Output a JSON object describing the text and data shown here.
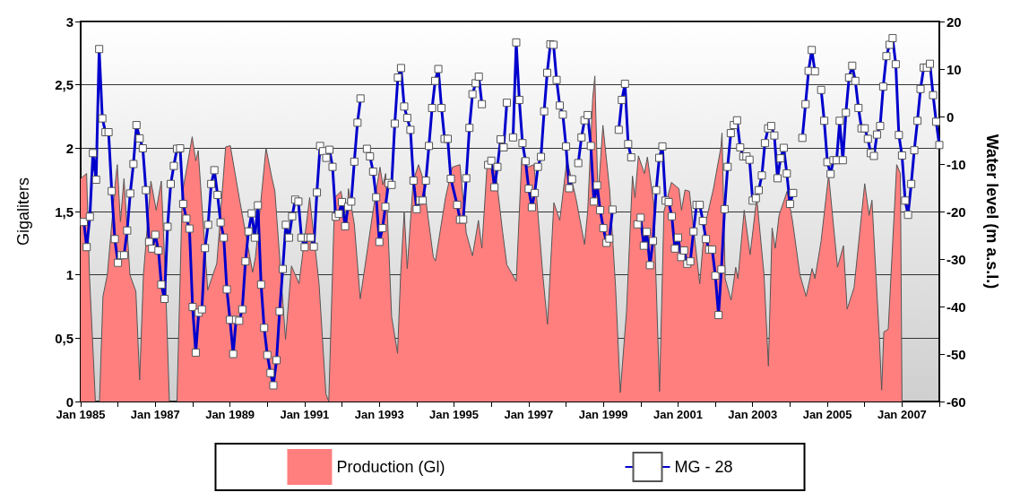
{
  "chart_data": {
    "type": "line",
    "ylabel": "Gigaliters",
    "y2label": "Water level (m a.s.l.)",
    "xlim": [
      "1985-01",
      "2008-01"
    ],
    "xticks": [
      {
        "value": "1985-01",
        "label": "Jan 1985"
      },
      {
        "value": "1986-01",
        "label": null
      },
      {
        "value": "1987-01",
        "label": "Jan 1987"
      },
      {
        "value": "1988-01",
        "label": null
      },
      {
        "value": "1989-01",
        "label": "Jan 1989"
      },
      {
        "value": "1990-01",
        "label": null
      },
      {
        "value": "1991-01",
        "label": "Jan 1991"
      },
      {
        "value": "1992-01",
        "label": null
      },
      {
        "value": "1993-01",
        "label": "Jan 1993"
      },
      {
        "value": "1994-01",
        "label": null
      },
      {
        "value": "1995-01",
        "label": "Jan 1995"
      },
      {
        "value": "1996-01",
        "label": null
      },
      {
        "value": "1997-01",
        "label": "Jan 1997"
      },
      {
        "value": "1998-01",
        "label": null
      },
      {
        "value": "1999-01",
        "label": "Jan 1999"
      },
      {
        "value": "2000-01",
        "label": null
      },
      {
        "value": "2001-01",
        "label": "Jan 2001"
      },
      {
        "value": "2002-01",
        "label": null
      },
      {
        "value": "2003-01",
        "label": "Jan 2003"
      },
      {
        "value": "2004-01",
        "label": null
      },
      {
        "value": "2005-01",
        "label": "Jan 2005"
      },
      {
        "value": "2006-01",
        "label": null
      },
      {
        "value": "2007-01",
        "label": "Jan 2007"
      },
      {
        "value": "2008-01",
        "label": null
      }
    ],
    "ylim": [
      0,
      3
    ],
    "yticks": [
      0,
      {
        "value": 0.5,
        "label": "0,5"
      },
      1,
      {
        "value": 1.5,
        "label": "1,5"
      },
      2,
      {
        "value": 2.5,
        "label": "2,5"
      },
      3
    ],
    "y2lim": [
      -60,
      20
    ],
    "y2ticks": [
      -60,
      -50,
      -40,
      -30,
      -20,
      -10,
      0,
      10,
      20
    ],
    "grid": "y",
    "legend": "bottom",
    "series": [
      {
        "name": "Production (Gl)",
        "type": "area",
        "color": "#ff7f7f",
        "x": [
          "1985-01-01",
          "1985-02-28",
          "1985-03-28",
          "1985-05-25",
          "1985-07-04",
          "1985-08-07",
          "1985-09-19",
          "1985-12-04",
          "1985-12-25",
          "1986-01-25",
          "1986-03-01",
          "1986-04-28",
          "1986-06-25",
          "1986-08-01",
          "1986-09-07",
          "1986-11-19",
          "1987-01-10",
          "1987-03-01",
          "1987-04-13",
          "1987-05-19",
          "1987-08-01",
          "1987-09-22",
          "1987-12-28",
          "1988-02-01",
          "1988-02-25",
          "1988-05-28",
          "1988-08-25",
          "1988-11-19",
          "1989-01-04",
          "1989-04-01",
          "1989-08-10",
          "1989-09-07",
          "1989-12-19",
          "1990-02-16",
          "1990-03-16",
          "1990-06-28",
          "1990-08-25",
          "1990-11-07",
          "1991-02-19",
          "1991-05-22",
          "1991-07-28",
          "1991-08-25",
          "1991-10-22",
          "1991-12-22",
          "1992-02-19",
          "1992-03-04",
          "1992-05-01",
          "1992-06-28",
          "1992-10-25",
          "1993-01-07",
          "1993-02-04",
          "1993-03-04",
          "1993-05-01",
          "1993-06-28",
          "1993-07-28",
          "1993-09-01",
          "1993-10-01",
          "1993-11-28",
          "1994-01-19",
          "1994-03-04",
          "1994-06-13",
          "1994-07-04",
          "1994-10-10",
          "1994-12-16",
          "1995-02-28",
          "1995-05-01",
          "1995-07-01",
          "1995-08-28",
          "1995-10-01",
          "1995-11-22",
          "1996-02-07",
          "1996-04-19",
          "1996-06-01",
          "1996-09-01",
          "1996-10-25",
          "1996-12-22",
          "1997-02-22",
          "1997-05-19",
          "1997-07-04",
          "1997-09-04",
          "1997-11-01",
          "1998-01-10",
          "1998-04-07",
          "1998-07-01",
          "1998-08-01",
          "1998-09-19",
          "1998-10-10",
          "1998-11-10",
          "1998-12-28",
          "1999-03-04",
          "1999-05-01",
          "1999-06-16",
          "1999-08-16",
          "1999-10-13",
          "1999-11-07",
          "1999-12-10",
          "2000-02-07",
          "2000-03-07",
          "2000-05-07",
          "2000-07-04",
          "2000-08-16",
          "2000-10-28",
          "2001-01-10",
          "2001-02-04",
          "2001-03-10",
          "2001-04-22",
          "2001-08-01",
          "2001-09-16",
          "2001-12-13",
          "2002-02-25",
          "2002-03-07",
          "2002-04-07",
          "2002-06-04",
          "2002-07-19",
          "2002-08-10",
          "2002-10-10",
          "2002-12-07",
          "2003-02-10",
          "2003-04-22",
          "2003-06-04",
          "2003-07-10",
          "2003-08-10",
          "2003-09-16",
          "2003-12-04",
          "2004-01-25",
          "2004-04-07",
          "2004-06-07",
          "2004-08-04",
          "2004-09-01",
          "2004-11-01",
          "2005-01-13",
          "2005-04-10",
          "2005-06-07",
          "2005-07-13",
          "2005-09-19",
          "2006-01-01",
          "2006-02-13",
          "2006-03-13",
          "2006-05-25",
          "2006-06-16",
          "2006-07-07",
          "2006-08-19",
          "2006-11-10",
          "2006-12-16",
          "2007-01-01"
        ],
        "values": [
          1.76,
          1.8,
          1.0,
          0,
          0,
          0.83,
          1.0,
          1.71,
          1.87,
          1.42,
          1.76,
          1.0,
          0.87,
          0.17,
          1.0,
          1.74,
          1.51,
          1.74,
          0.9,
          0,
          0,
          1.64,
          2.09,
          1.9,
          1.98,
          0.88,
          1.09,
          2.01,
          2.02,
          1.61,
          1.02,
          1.14,
          2.0,
          1.76,
          1.66,
          0.49,
          1.07,
          0.93,
          1.61,
          0.93,
          0.06,
          0,
          1.61,
          1.66,
          1.4,
          1.68,
          1.4,
          0.81,
          1.47,
          1.85,
          1.71,
          1.8,
          0.67,
          0.38,
          1.0,
          1.5,
          1.05,
          1.74,
          1.87,
          1.76,
          1.14,
          1.11,
          1.61,
          1.85,
          1.87,
          1.33,
          1.15,
          1.43,
          1.21,
          1.88,
          1.85,
          1.35,
          1.08,
          0.95,
          1.92,
          1.85,
          1.87,
          1.0,
          0.61,
          1.57,
          1.43,
          1.91,
          1.61,
          1.24,
          1.5,
          2.39,
          2.57,
          1.61,
          2.18,
          1.67,
          0.9,
          0.07,
          0.71,
          1.78,
          1.61,
          1.94,
          1.8,
          1.93,
          1.57,
          0.08,
          1.5,
          1.73,
          1.68,
          1.51,
          1.67,
          1.66,
          0.93,
          1.37,
          1.68,
          2.01,
          2.12,
          0.97,
          0.8,
          1.06,
          0.97,
          1.51,
          1.16,
          1.61,
          1.0,
          0.28,
          1.37,
          1.21,
          1.47,
          1.66,
          1.43,
          1.0,
          0.83,
          1.05,
          0.97,
          1.27,
          1.79,
          1.06,
          1.23,
          0.73,
          0.9,
          1.72,
          1.47,
          1.59,
          0.49,
          0.09,
          0.55,
          0.57,
          1.87,
          1.8,
          0
        ]
      },
      {
        "name": "MG - 28",
        "axis": "y2",
        "marker": "square",
        "color": "#0000cc",
        "x": [
          "1985-02",
          "1985-03",
          "1985-04",
          "1985-05",
          "1985-06",
          "1985-07",
          "1985-08",
          "1985-09",
          "1985-10",
          "1985-11",
          "1985-12",
          "1986-01",
          "1986-02",
          "1986-03",
          "1986-04",
          "1986-05",
          "1986-06",
          "1986-07",
          "1986-08",
          "1986-09",
          "1986-10",
          "1986-11",
          "1986-12",
          "1987-01",
          "1987-02",
          "1987-03",
          "1987-04",
          "1987-05",
          "1987-06",
          "1987-07",
          "1987-08",
          "1987-09",
          "1987-10",
          "1987-11",
          "1987-12",
          "1988-01",
          "1988-02",
          "1988-03",
          "1988-04",
          "1988-05",
          "1988-06",
          "1988-07",
          "1988-08",
          "1988-09",
          "1988-10",
          "1988-11",
          "1988-12",
          "1989-01",
          "1989-02",
          "1989-03",
          "1989-04",
          "1989-05",
          "1989-06",
          "1989-07",
          "1989-08",
          "1989-09",
          "1989-10",
          "1989-11",
          "1989-12",
          "1990-01",
          "1990-02",
          "1990-03",
          "1990-04",
          "1990-05",
          "1990-06",
          "1990-07",
          "1990-08",
          "1990-09",
          "1990-10",
          "1990-11",
          "1990-12",
          "1991-01",
          "1991-02",
          "1991-03",
          "1991-04",
          "1991-05",
          "1991-06",
          "1991-07",
          "1991-08",
          "1991-09",
          "1991-10",
          "1991-11",
          "1991-12",
          "1992-01",
          "1992-02",
          "1992-03",
          "1992-04",
          "1992-05",
          "1992-06",
          "1992-07",
          "1992-08",
          "1992-09",
          "1992-10",
          "1992-11",
          "1992-12",
          "1993-01",
          "1993-02",
          "1993-03",
          "1993-04",
          "1993-05",
          "1993-06",
          "1993-07",
          "1993-08",
          "1993-09",
          "1993-10",
          "1993-11",
          "1993-12",
          "1994-01",
          "1994-02",
          "1994-03",
          "1994-04",
          "1994-05",
          "1994-06",
          "1994-07",
          "1994-08",
          "1994-09",
          "1994-10",
          "1994-11",
          "1994-12",
          "1995-02",
          "1995-03",
          "1995-04",
          "1995-05",
          "1995-06",
          "1995-07",
          "1995-08",
          "1995-09",
          "1995-10",
          "1995-11",
          "1995-12",
          "1996-01",
          "1996-02",
          "1996-03",
          "1996-04",
          "1996-05",
          "1996-06",
          "1996-07",
          "1996-08",
          "1996-09",
          "1996-10",
          "1996-11",
          "1996-12",
          "1997-01",
          "1997-02",
          "1997-03",
          "1997-04",
          "1997-05",
          "1997-06",
          "1997-07",
          "1997-08",
          "1997-09",
          "1997-10",
          "1997-11",
          "1997-12",
          "1998-01",
          "1998-02",
          "1998-03",
          "1998-04",
          "1998-05",
          "1998-06",
          "1998-07",
          "1998-08",
          "1998-09",
          "1998-10",
          "1998-11",
          "1998-12",
          "1999-01",
          "1999-02",
          "1999-03",
          "1999-04",
          "1999-05",
          "1999-06",
          "1999-07",
          "1999-08",
          "1999-09",
          "1999-10",
          "1999-11",
          "1999-12",
          "2000-01",
          "2000-02",
          "2000-03",
          "2000-04",
          "2000-05",
          "2000-06",
          "2000-07",
          "2000-08",
          "2000-09",
          "2000-10",
          "2000-11",
          "2000-12",
          "2001-01",
          "2001-02",
          "2001-03",
          "2001-04",
          "2001-05",
          "2001-06",
          "2001-07",
          "2001-08",
          "2001-09",
          "2001-10",
          "2001-11",
          "2001-12",
          "2002-01",
          "2002-02",
          "2002-03",
          "2002-04",
          "2002-05",
          "2002-06",
          "2002-07",
          "2002-08",
          "2002-09",
          "2002-10",
          "2002-11",
          "2002-12",
          "2003-01",
          "2003-02",
          "2003-03",
          "2003-04",
          "2003-05",
          "2003-06",
          "2003-07",
          "2003-08",
          "2003-09",
          "2003-10",
          "2003-11",
          "2003-12",
          "2004-01",
          "2004-02",
          "2004-04",
          "2004-05",
          "2004-06",
          "2004-07",
          "2004-08",
          "2004-09",
          "2004-10",
          "2004-11",
          "2004-12",
          "2005-01",
          "2005-02",
          "2005-03",
          "2005-04",
          "2005-05",
          "2005-06",
          "2005-07",
          "2005-08",
          "2005-09",
          "2005-10",
          "2005-11",
          "2005-12",
          "2006-01",
          "2006-02",
          "2006-03",
          "2006-04",
          "2006-05",
          "2006-06",
          "2006-07",
          "2006-08",
          "2006-09",
          "2006-10",
          "2006-11",
          "2006-12",
          "2007-01",
          "2007-02",
          "2007-03",
          "2007-04",
          "2007-05",
          "2007-06",
          "2007-07",
          "2007-08",
          "2007-09",
          "2007-10",
          "2007-11",
          "2007-12",
          "2008-01"
        ],
        "values": [
          -22.2,
          -27.5,
          -21.1,
          -7.7,
          -13.3,
          14.2,
          -0.4,
          -3.3,
          -3.3,
          -15.7,
          -25.8,
          -30.8,
          -29.2,
          -29.2,
          -24,
          -16.2,
          -10,
          -1.8,
          -4.6,
          -6.7,
          -15.5,
          -26.4,
          -27.8,
          -24.9,
          -28.2,
          -35.4,
          -38.4,
          -23.2,
          -14.2,
          -10.4,
          -6.8,
          -6.7,
          -18.4,
          -21.5,
          -23.6,
          -40.1,
          -49.7,
          -41.3,
          -40.6,
          -27.7,
          -22.8,
          -14.2,
          -11.3,
          -16.5,
          -22.3,
          -25.5,
          -36.4,
          -42.8,
          -50,
          -42.8,
          -43,
          -40.6,
          -30.5,
          -24.2,
          -20.4,
          -25.5,
          -18.7,
          -35.4,
          -44.5,
          -50.2,
          -54,
          -56.6,
          -51.3,
          -41,
          -32.1,
          -22.8,
          -25.5,
          -21,
          -17.5,
          -17.9,
          -25.5,
          -27.5,
          -25.5,
          -25.5,
          -27.4,
          -16,
          -6.2,
          -7.3,
          -8.7,
          -7,
          -10.6,
          -21.1,
          -20.5,
          -18,
          -23.1,
          -19,
          -17.9,
          -9.5,
          -1.3,
          3.8,
          null,
          -6.8,
          -8.4,
          -11.6,
          -17,
          -26.4,
          -23.5,
          -19,
          -14,
          -14.4,
          -1.5,
          8.2,
          10.2,
          2.1,
          -0.3,
          -2.8,
          -13.5,
          -19.5,
          -17.7,
          -17.7,
          -13.5,
          -6.2,
          1.8,
          7.5,
          10,
          1.8,
          -4.7,
          -4.7,
          -13.1,
          -18.6,
          -21.7,
          -21.7,
          -13,
          -2.4,
          4.7,
          7,
          8.4,
          2.6,
          null,
          -10.2,
          -9.3,
          -14.9,
          -10.6,
          -4.8,
          -6.5,
          2.9,
          null,
          -4.4,
          15.6,
          3.5,
          -5.6,
          -9.4,
          -15.2,
          -19.1,
          -16.1,
          -10.6,
          -8.5,
          1.1,
          9.2,
          15.2,
          15.1,
          7.7,
          2.3,
          0.4,
          -6.3,
          -15.1,
          -13.2,
          null,
          -9.8,
          -4.4,
          -0.8,
          0.3,
          -6.2,
          -17.9,
          -14.5,
          -19.7,
          -23.5,
          -26.6,
          -25.7,
          -19.6,
          null,
          -2.8,
          3.5,
          6.9,
          -5.8,
          -8.6,
          null,
          -22.7,
          -21.3,
          -27.2,
          -24.3,
          -31.3,
          -26.2,
          -15.5,
          -8.7,
          -6.3,
          -17.7,
          -18,
          -21,
          -27.8,
          -25.5,
          -29.6,
          -28.2,
          -31,
          -30.5,
          -24.2,
          -18.6,
          -18.6,
          -22,
          -25.8,
          -28,
          -28,
          -33.5,
          -41.8,
          -32.2,
          -19.5,
          -10.6,
          -3.5,
          -1.8,
          -0.8,
          -6.5,
          -8.4,
          -8.4,
          -9.1,
          -17.7,
          -17.2,
          -15.5,
          -12.4,
          -5.6,
          -2.5,
          -2,
          -4,
          -13,
          -8.8,
          -6.6,
          -12,
          -18.4,
          -16.1,
          null,
          -4.5,
          2.6,
          9.6,
          14,
          9.5,
          null,
          5.6,
          -0.9,
          -9.6,
          -12.1,
          -9.2,
          -9.2,
          -0.9,
          -9.2,
          0.8,
          8.2,
          10.7,
          7.5,
          1.8,
          -2.5,
          -2.5,
          -4.7,
          -7.7,
          -8.3,
          -3.8,
          -2,
          6.3,
          12.7,
          15.1,
          16.5,
          11,
          -3.9,
          -8.2,
          -17.7,
          -20.7,
          -14.2,
          -7.1,
          -0.9,
          5.8,
          10.3,
          10.3,
          11.1,
          4.5,
          -1.1,
          -6
        ]
      }
    ]
  }
}
